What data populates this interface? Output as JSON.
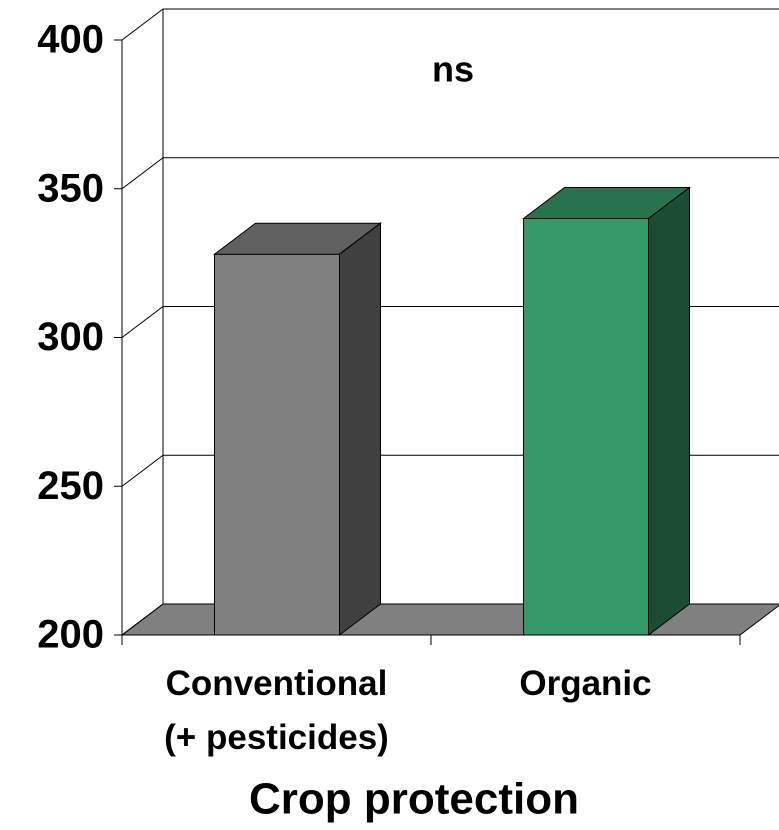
{
  "chart_data": {
    "type": "bar3d",
    "x_label": "Crop protection",
    "annotation": "ns",
    "categories": [
      "Conventional\n(+ pesticides)",
      "Organic"
    ],
    "values": [
      328,
      340
    ],
    "colors": [
      "#808080",
      "#339966"
    ],
    "ylim": [
      200,
      400
    ],
    "yticks": [
      200,
      250,
      300,
      350,
      400
    ],
    "grid": true
  }
}
